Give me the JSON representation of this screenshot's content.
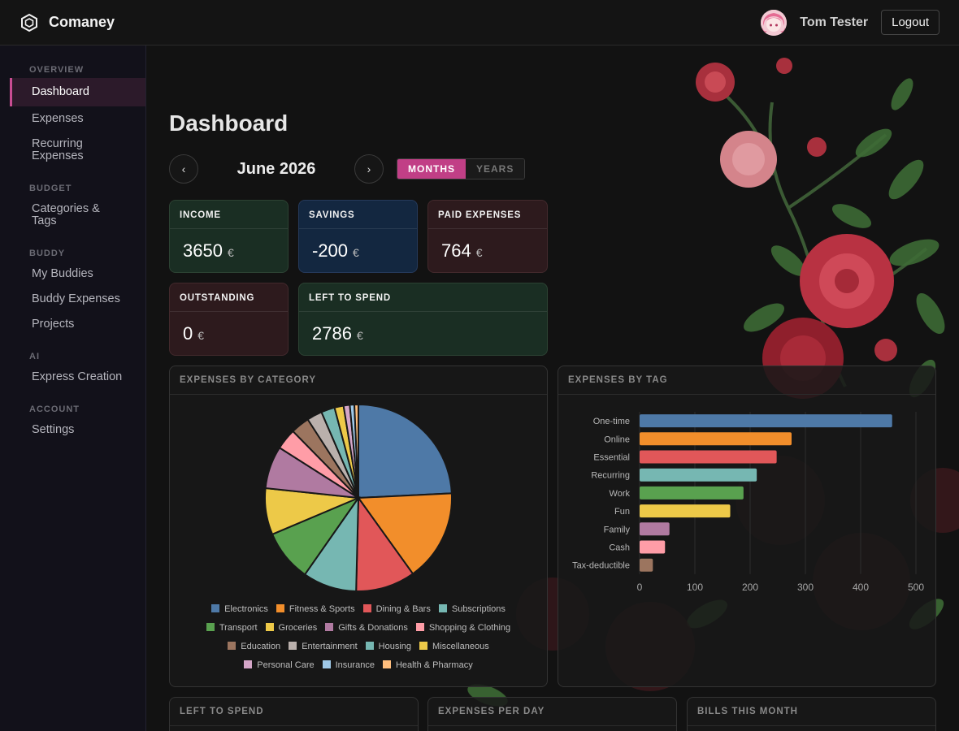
{
  "app": {
    "name": "Comaney"
  },
  "user": {
    "name": "Tom Tester",
    "logout_label": "Logout"
  },
  "sidebar": {
    "sections": [
      {
        "title": "OVERVIEW",
        "items": [
          {
            "label": "Dashboard",
            "active": true
          },
          {
            "label": "Expenses"
          },
          {
            "label": "Recurring\nExpenses"
          }
        ]
      },
      {
        "title": "BUDGET",
        "items": [
          {
            "label": "Categories &\nTags"
          }
        ]
      },
      {
        "title": "BUDDY",
        "items": [
          {
            "label": "My Buddies"
          },
          {
            "label": "Buddy Expenses"
          },
          {
            "label": "Projects"
          }
        ]
      },
      {
        "title": "AI",
        "items": [
          {
            "label": "Express Creation"
          }
        ]
      },
      {
        "title": "ACCOUNT",
        "items": [
          {
            "label": "Settings"
          }
        ]
      }
    ]
  },
  "page": {
    "title": "Dashboard",
    "period": "June 2026",
    "toggle": {
      "months": "MONTHS",
      "years": "YEARS",
      "active": "months"
    }
  },
  "stats": {
    "income": {
      "label": "INCOME",
      "value": "3650",
      "currency": "€"
    },
    "savings": {
      "label": "SAVINGS",
      "value": "-200",
      "currency": "€"
    },
    "paid": {
      "label": "PAID EXPENSES",
      "value": "764",
      "currency": "€"
    },
    "outstanding": {
      "label": "OUTSTANDING",
      "value": "0",
      "currency": "€"
    },
    "left": {
      "label": "LEFT TO SPEND",
      "value": "2786",
      "currency": "€"
    }
  },
  "panels": {
    "by_category": "EXPENSES BY CATEGORY",
    "by_tag": "EXPENSES BY TAG",
    "left_to_spend": "LEFT TO SPEND",
    "per_day": "EXPENSES PER DAY",
    "bills": "BILLS THIS MONTH"
  },
  "chart_data": [
    {
      "type": "pie",
      "title": "EXPENSES BY CATEGORY",
      "legend": "bottom",
      "labels": [
        "Electronics",
        "Fitness & Sports",
        "Dining & Bars",
        "Subscriptions",
        "Transport",
        "Groceries",
        "Gifts & Donations",
        "Shopping & Clothing",
        "Education",
        "Entertainment",
        "Housing",
        "Miscellaneous",
        "Personal Care",
        "Insurance",
        "Health & Pharmacy"
      ],
      "values": [
        24.7,
        16.2,
        10.5,
        9.5,
        9.1,
        8.2,
        7.5,
        3.7,
        3.3,
        2.7,
        2.4,
        1.6,
        1.1,
        0.8,
        0.7
      ],
      "colors": [
        "#4e79a7",
        "#f28e2b",
        "#e15759",
        "#76b7b2",
        "#59a14f",
        "#edc948",
        "#b07aa1",
        "#ff9da7",
        "#9c755f",
        "#bab0ac",
        "#76b7b2",
        "#edc948",
        "#d4a6c8",
        "#9fc9e8",
        "#ffbe7d"
      ]
    },
    {
      "type": "bar",
      "orientation": "horizontal",
      "title": "EXPENSES BY TAG",
      "categories": [
        "One-time",
        "Online",
        "Essential",
        "Recurring",
        "Work",
        "Fun",
        "Family",
        "Cash",
        "Tax-deductible"
      ],
      "values": [
        457,
        275,
        248,
        212,
        188,
        164,
        54,
        46,
        24
      ],
      "colors": [
        "#4e79a7",
        "#f28e2b",
        "#e15759",
        "#76b7b2",
        "#59a14f",
        "#edc948",
        "#b07aa1",
        "#ff9da7",
        "#9c755f"
      ],
      "xlim": [
        0,
        500
      ],
      "xticks": [
        0,
        100,
        200,
        300,
        400,
        500
      ],
      "grid": true
    }
  ]
}
